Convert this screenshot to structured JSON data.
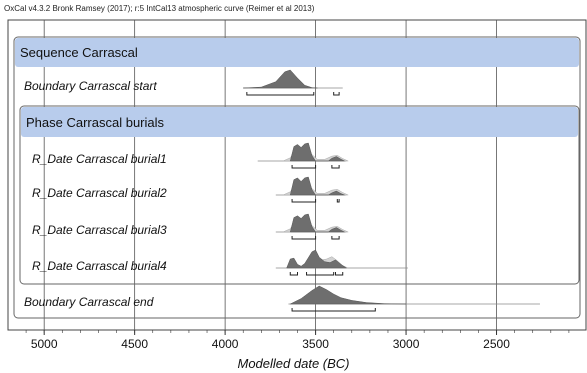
{
  "header": "OxCal v4.3.2 Bronk Ramsey (2017); r:5 IntCal13 atmospheric curve (Reimer et al 2013)",
  "chart_data": {
    "type": "area",
    "title": "",
    "xlabel": "Modelled date (BC)",
    "xlim": [
      5200,
      2000
    ],
    "xticks": [
      5000,
      4500,
      4000,
      3500,
      3000,
      2500
    ],
    "grid": true,
    "sequence_label": "Sequence Carrascal",
    "phase_label": "Phase Carrascal burials",
    "rows": [
      {
        "label": "Boundary Carrascal start",
        "in_phase": false,
        "line_range": [
          3900,
          3350
        ],
        "posterior": [
          [
            3900,
            0
          ],
          [
            3800,
            0.05
          ],
          [
            3720,
            0.35
          ],
          [
            3670,
            0.9
          ],
          [
            3640,
            1.0
          ],
          [
            3600,
            0.55
          ],
          [
            3560,
            0.15
          ],
          [
            3520,
            0.02
          ],
          [
            3490,
            0
          ]
        ],
        "prior": [],
        "hpd": [
          [
            3880,
            3510
          ],
          [
            3400,
            3370
          ]
        ]
      },
      {
        "label": "R_Date Carrascal burial1",
        "in_phase": true,
        "line_range": [
          3820,
          3330
        ],
        "posterior": [
          [
            3640,
            0
          ],
          [
            3620,
            0.8
          ],
          [
            3600,
            0.92
          ],
          [
            3580,
            0.75
          ],
          [
            3560,
            0.95
          ],
          [
            3540,
            1.0
          ],
          [
            3520,
            0.3
          ],
          [
            3500,
            0
          ],
          [
            3430,
            0
          ],
          [
            3410,
            0.15
          ],
          [
            3385,
            0.25
          ],
          [
            3360,
            0.1
          ],
          [
            3340,
            0
          ]
        ],
        "prior": [
          [
            3680,
            0
          ],
          [
            3640,
            0.2
          ],
          [
            3610,
            0.7
          ],
          [
            3580,
            0.8
          ],
          [
            3550,
            0.85
          ],
          [
            3530,
            0.5
          ],
          [
            3490,
            0.1
          ],
          [
            3450,
            0.1
          ],
          [
            3410,
            0.3
          ],
          [
            3380,
            0.35
          ],
          [
            3350,
            0.15
          ],
          [
            3320,
            0
          ]
        ],
        "hpd": [
          [
            3630,
            3500
          ],
          [
            3410,
            3370
          ]
        ]
      },
      {
        "label": "R_Date Carrascal burial2",
        "in_phase": true,
        "line_range": [
          3720,
          3330
        ],
        "posterior": [
          [
            3640,
            0
          ],
          [
            3620,
            0.85
          ],
          [
            3600,
            0.95
          ],
          [
            3580,
            0.75
          ],
          [
            3560,
            0.95
          ],
          [
            3540,
            1.0
          ],
          [
            3520,
            0.3
          ],
          [
            3500,
            0
          ],
          [
            3430,
            0
          ],
          [
            3410,
            0.12
          ],
          [
            3385,
            0.22
          ],
          [
            3360,
            0.08
          ],
          [
            3340,
            0
          ]
        ],
        "prior": [
          [
            3680,
            0
          ],
          [
            3640,
            0.2
          ],
          [
            3610,
            0.7
          ],
          [
            3580,
            0.8
          ],
          [
            3550,
            0.85
          ],
          [
            3530,
            0.5
          ],
          [
            3490,
            0.1
          ],
          [
            3450,
            0.1
          ],
          [
            3410,
            0.3
          ],
          [
            3380,
            0.35
          ],
          [
            3350,
            0.15
          ],
          [
            3320,
            0
          ]
        ],
        "hpd": [
          [
            3630,
            3500
          ],
          [
            3380,
            3370
          ]
        ]
      },
      {
        "label": "R_Date Carrascal burial3",
        "in_phase": true,
        "line_range": [
          3720,
          3330
        ],
        "posterior": [
          [
            3640,
            0
          ],
          [
            3620,
            0.8
          ],
          [
            3600,
            0.9
          ],
          [
            3580,
            0.75
          ],
          [
            3560,
            0.95
          ],
          [
            3540,
            1.0
          ],
          [
            3520,
            0.3
          ],
          [
            3500,
            0
          ],
          [
            3430,
            0
          ],
          [
            3410,
            0.15
          ],
          [
            3385,
            0.25
          ],
          [
            3360,
            0.1
          ],
          [
            3340,
            0
          ]
        ],
        "prior": [
          [
            3680,
            0
          ],
          [
            3640,
            0.2
          ],
          [
            3610,
            0.7
          ],
          [
            3580,
            0.8
          ],
          [
            3550,
            0.85
          ],
          [
            3530,
            0.5
          ],
          [
            3490,
            0.1
          ],
          [
            3450,
            0.1
          ],
          [
            3410,
            0.3
          ],
          [
            3380,
            0.35
          ],
          [
            3350,
            0.15
          ],
          [
            3320,
            0
          ]
        ],
        "hpd": [
          [
            3630,
            3500
          ],
          [
            3410,
            3370
          ]
        ]
      },
      {
        "label": "R_Date Carrascal burial4",
        "in_phase": true,
        "line_range": [
          3720,
          2990
        ],
        "posterior": [
          [
            3660,
            0
          ],
          [
            3640,
            0.5
          ],
          [
            3620,
            0.55
          ],
          [
            3600,
            0.2
          ],
          [
            3580,
            0.1
          ],
          [
            3560,
            0.25
          ],
          [
            3520,
            0.9
          ],
          [
            3500,
            1.0
          ],
          [
            3480,
            0.6
          ],
          [
            3450,
            0.35
          ],
          [
            3420,
            0.3
          ],
          [
            3390,
            0.45
          ],
          [
            3360,
            0.2
          ],
          [
            3330,
            0
          ]
        ],
        "prior": [
          [
            3540,
            0
          ],
          [
            3520,
            0.6
          ],
          [
            3500,
            0.75
          ],
          [
            3470,
            0.5
          ],
          [
            3440,
            0.55
          ],
          [
            3410,
            0.7
          ],
          [
            3380,
            0.45
          ],
          [
            3350,
            0.15
          ],
          [
            3320,
            0
          ]
        ],
        "hpd": [
          [
            3640,
            3600
          ],
          [
            3550,
            3400
          ],
          [
            3390,
            3350
          ]
        ]
      },
      {
        "label": "Boundary Carrascal end",
        "in_phase": false,
        "line_range": [
          3650,
          2260
        ],
        "posterior": [
          [
            3640,
            0
          ],
          [
            3580,
            0.3
          ],
          [
            3520,
            0.75
          ],
          [
            3480,
            1.0
          ],
          [
            3440,
            0.8
          ],
          [
            3400,
            0.55
          ],
          [
            3360,
            0.35
          ],
          [
            3300,
            0.2
          ],
          [
            3220,
            0.08
          ],
          [
            3120,
            0.02
          ],
          [
            3000,
            0
          ]
        ],
        "prior": [],
        "hpd": [
          [
            3630,
            3170
          ]
        ]
      }
    ]
  }
}
